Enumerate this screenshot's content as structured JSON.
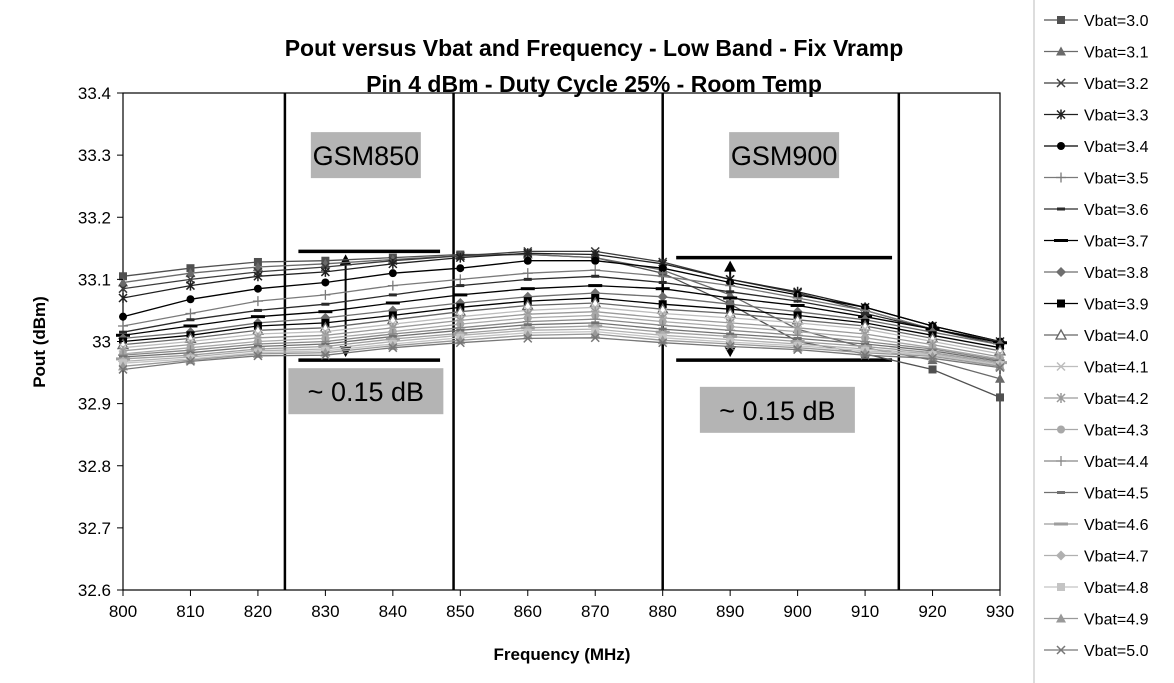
{
  "chart_data": {
    "type": "line",
    "title_line1": "Pout versus Vbat and Frequency - Low Band - Fix Vramp",
    "title_line2": "Pin 4 dBm - Duty Cycle 25% - Room Temp",
    "xlabel": "Frequency (MHz)",
    "ylabel": "Pout (dBm)",
    "x": [
      800,
      810,
      820,
      830,
      840,
      850,
      860,
      870,
      880,
      890,
      900,
      910,
      920,
      930
    ],
    "xlim": [
      800,
      930
    ],
    "ylim": [
      32.6,
      33.4
    ],
    "x_ticks": [
      "800",
      "810",
      "820",
      "830",
      "840",
      "850",
      "860",
      "870",
      "880",
      "890",
      "900",
      "910",
      "920",
      "930"
    ],
    "y_ticks": [
      "32.6",
      "32.7",
      "32.8",
      "32.9",
      "33",
      "33.1",
      "33.2",
      "33.3",
      "33.4"
    ],
    "grid": false,
    "legend_position": "right",
    "band_lines_mhz": [
      824,
      849,
      880,
      915
    ],
    "annotations": [
      {
        "text": "GSM850",
        "x": 836,
        "y": 33.3
      },
      {
        "text": "GSM900",
        "x": 898,
        "y": 33.3
      },
      {
        "text": "~ 0.15 dB",
        "x": 836,
        "y": 32.92
      },
      {
        "text": "~ 0.15 dB",
        "x": 897,
        "y": 32.89
      }
    ],
    "brackets": [
      {
        "x1": 826,
        "x2": 847,
        "arrow_x": 833,
        "ytop": 33.145,
        "ybottom": 32.97
      },
      {
        "x1": 882,
        "x2": 914,
        "arrow_x": 890,
        "ytop": 33.135,
        "ybottom": 32.97
      }
    ],
    "series": [
      {
        "name": "Vbat=3.0",
        "color": "#505050",
        "marker": "square",
        "values": [
          33.105,
          33.118,
          33.128,
          33.13,
          33.135,
          33.14,
          33.14,
          33.135,
          33.11,
          33.06,
          33.0,
          32.98,
          32.955,
          32.91
        ]
      },
      {
        "name": "Vbat=3.1",
        "color": "#6a6a6a",
        "marker": "triangle",
        "values": [
          33.095,
          33.11,
          33.12,
          33.125,
          33.132,
          33.138,
          33.14,
          33.135,
          33.115,
          33.075,
          33.02,
          32.99,
          32.97,
          32.94
        ]
      },
      {
        "name": "Vbat=3.2",
        "color": "#3c3c3c",
        "marker": "x",
        "values": [
          33.085,
          33.1,
          33.112,
          33.12,
          33.13,
          33.138,
          33.145,
          33.145,
          33.128,
          33.1,
          33.078,
          33.05,
          33.02,
          32.995
        ]
      },
      {
        "name": "Vbat=3.3",
        "color": "#202020",
        "marker": "star",
        "values": [
          33.07,
          33.09,
          33.105,
          33.112,
          33.125,
          33.135,
          33.142,
          33.14,
          33.125,
          33.1,
          33.08,
          33.055,
          33.025,
          33.0
        ]
      },
      {
        "name": "Vbat=3.4",
        "color": "#000000",
        "marker": "circle",
        "values": [
          33.04,
          33.068,
          33.085,
          33.095,
          33.11,
          33.118,
          33.13,
          33.13,
          33.118,
          33.095,
          33.075,
          33.055,
          33.025,
          33.0
        ]
      },
      {
        "name": "Vbat=3.5",
        "color": "#7a7a7a",
        "marker": "plus",
        "values": [
          33.025,
          33.045,
          33.065,
          33.075,
          33.09,
          33.1,
          33.11,
          33.115,
          33.105,
          33.09,
          33.07,
          33.05,
          33.02,
          33.0
        ]
      },
      {
        "name": "Vbat=3.6",
        "color": "#2a2a2a",
        "marker": "dash",
        "values": [
          33.015,
          33.035,
          33.05,
          33.06,
          33.075,
          33.09,
          33.1,
          33.105,
          33.095,
          33.08,
          33.065,
          33.045,
          33.02,
          33.0
        ]
      },
      {
        "name": "Vbat=3.7",
        "color": "#000000",
        "marker": "longdash",
        "values": [
          33.01,
          33.025,
          33.04,
          33.048,
          33.062,
          33.075,
          33.085,
          33.09,
          33.085,
          33.07,
          33.058,
          33.04,
          33.02,
          32.998
        ]
      },
      {
        "name": "Vbat=3.8",
        "color": "#6e6e6e",
        "marker": "diamond",
        "values": [
          33.005,
          33.015,
          33.03,
          33.038,
          33.05,
          33.062,
          33.072,
          33.078,
          33.072,
          33.06,
          33.048,
          33.035,
          33.015,
          32.995
        ]
      },
      {
        "name": "Vbat=3.9",
        "color": "#000000",
        "marker": "square",
        "values": [
          33.0,
          33.01,
          33.025,
          33.03,
          33.042,
          33.055,
          33.065,
          33.07,
          33.06,
          33.052,
          33.042,
          33.03,
          33.01,
          32.99
        ]
      },
      {
        "name": "Vbat=4.0",
        "color": "#666666",
        "marker": "triangle-open",
        "values": [
          32.995,
          33.005,
          33.018,
          33.022,
          33.035,
          33.048,
          33.058,
          33.062,
          33.052,
          33.045,
          33.035,
          33.025,
          33.005,
          32.985
        ]
      },
      {
        "name": "Vbat=4.1",
        "color": "#bdbdbd",
        "marker": "x",
        "values": [
          32.99,
          33.0,
          33.012,
          33.016,
          33.028,
          33.04,
          33.05,
          33.055,
          33.045,
          33.038,
          33.03,
          33.02,
          33.0,
          32.98
        ]
      },
      {
        "name": "Vbat=4.2",
        "color": "#9a9a9a",
        "marker": "star",
        "values": [
          32.985,
          32.995,
          33.006,
          33.01,
          33.022,
          33.034,
          33.044,
          33.048,
          33.038,
          33.03,
          33.022,
          33.012,
          32.995,
          32.975
        ]
      },
      {
        "name": "Vbat=4.3",
        "color": "#a8a8a8",
        "marker": "circle",
        "values": [
          32.98,
          32.99,
          33.0,
          33.005,
          33.016,
          33.028,
          33.038,
          33.042,
          33.032,
          33.024,
          33.016,
          33.006,
          32.99,
          32.972
        ]
      },
      {
        "name": "Vbat=4.4",
        "color": "#888888",
        "marker": "plus",
        "values": [
          32.978,
          32.986,
          32.996,
          33.0,
          33.012,
          33.022,
          33.032,
          33.036,
          33.026,
          33.018,
          33.01,
          33.0,
          32.988,
          32.97
        ]
      },
      {
        "name": "Vbat=4.5",
        "color": "#707070",
        "marker": "dash",
        "values": [
          32.975,
          32.982,
          32.992,
          32.996,
          33.008,
          33.018,
          33.027,
          33.03,
          33.02,
          33.012,
          33.005,
          32.996,
          32.985,
          32.968
        ]
      },
      {
        "name": "Vbat=4.6",
        "color": "#9e9e9e",
        "marker": "longdash",
        "values": [
          32.972,
          32.978,
          32.988,
          32.992,
          33.004,
          33.013,
          33.022,
          33.025,
          33.015,
          33.008,
          33.0,
          32.992,
          32.982,
          32.966
        ]
      },
      {
        "name": "Vbat=4.7",
        "color": "#b0b0b0",
        "marker": "diamond",
        "values": [
          32.968,
          32.975,
          32.985,
          32.988,
          33.0,
          33.01,
          33.018,
          33.02,
          33.01,
          33.003,
          32.996,
          32.988,
          32.98,
          32.964
        ]
      },
      {
        "name": "Vbat=4.8",
        "color": "#c4c4c4",
        "marker": "square",
        "values": [
          32.965,
          32.972,
          32.982,
          32.985,
          32.996,
          33.006,
          33.014,
          33.016,
          33.006,
          32.999,
          32.993,
          32.985,
          32.978,
          32.962
        ]
      },
      {
        "name": "Vbat=4.9",
        "color": "#999999",
        "marker": "triangle",
        "values": [
          32.96,
          32.97,
          32.98,
          32.982,
          32.993,
          33.002,
          33.01,
          33.012,
          33.002,
          32.996,
          32.99,
          32.982,
          32.976,
          32.96
        ]
      },
      {
        "name": "Vbat=5.0",
        "color": "#777777",
        "marker": "x",
        "values": [
          32.955,
          32.968,
          32.977,
          32.978,
          32.99,
          32.998,
          33.005,
          33.006,
          32.998,
          32.992,
          32.987,
          32.978,
          32.973,
          32.958
        ]
      }
    ]
  }
}
